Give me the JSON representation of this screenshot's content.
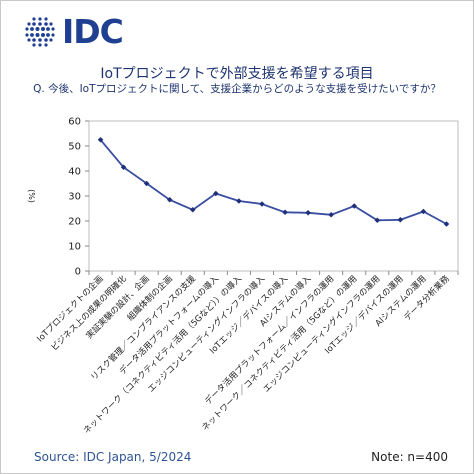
{
  "logo": {
    "text": "IDC",
    "icon": "idc-globe-dots-icon",
    "color": "#1f3f91"
  },
  "title": "IoTプロジェクトで外部支援を希望する項目",
  "subtitle": "Q. 今後、IoTプロジェクトに関して、支援企業からどのような支援を受けたいですか？",
  "footer": {
    "source": "Source: IDC Japan, 5/2024",
    "note": "Note: n=400"
  },
  "chart_data": {
    "type": "line",
    "title": "IoTプロジェクトで外部支援を希望する項目",
    "xlabel": "",
    "ylabel": "(%)",
    "ylim": [
      0,
      60
    ],
    "yticks": [
      0,
      10,
      20,
      30,
      40,
      50,
      60
    ],
    "grid": false,
    "line_color": "#3a4ea0",
    "marker_color": "#1f2f7a",
    "categories": [
      "IoTプロジェクトの企画",
      "ビジネス上の成果の明確化",
      "実証実験の設計、企画",
      "組織体制の企画",
      "リスク管理／コンプライアンスの支援",
      "データ活用プラットフォームの導入",
      "ネットワーク（コネクティビティ活用（5Gなど））の導入",
      "エッジコンピューティングインフラの導入",
      "IoTエッジ／デバイスの導入",
      "AIシステムの導入",
      "データ活用プラットフォーム／インフラの運用",
      "ネットワーク／コネクティビティ活用（5Gなど）の運用",
      "エッジコンピューティングインフラの運用",
      "IoTエッジ／デバイスの運用",
      "AIシステムの運用",
      "データ分析業務"
    ],
    "values": [
      52.5,
      41.5,
      35.0,
      28.5,
      24.5,
      31.0,
      28.0,
      26.8,
      23.5,
      23.3,
      22.5,
      26.0,
      20.3,
      20.5,
      23.8,
      18.8
    ]
  }
}
